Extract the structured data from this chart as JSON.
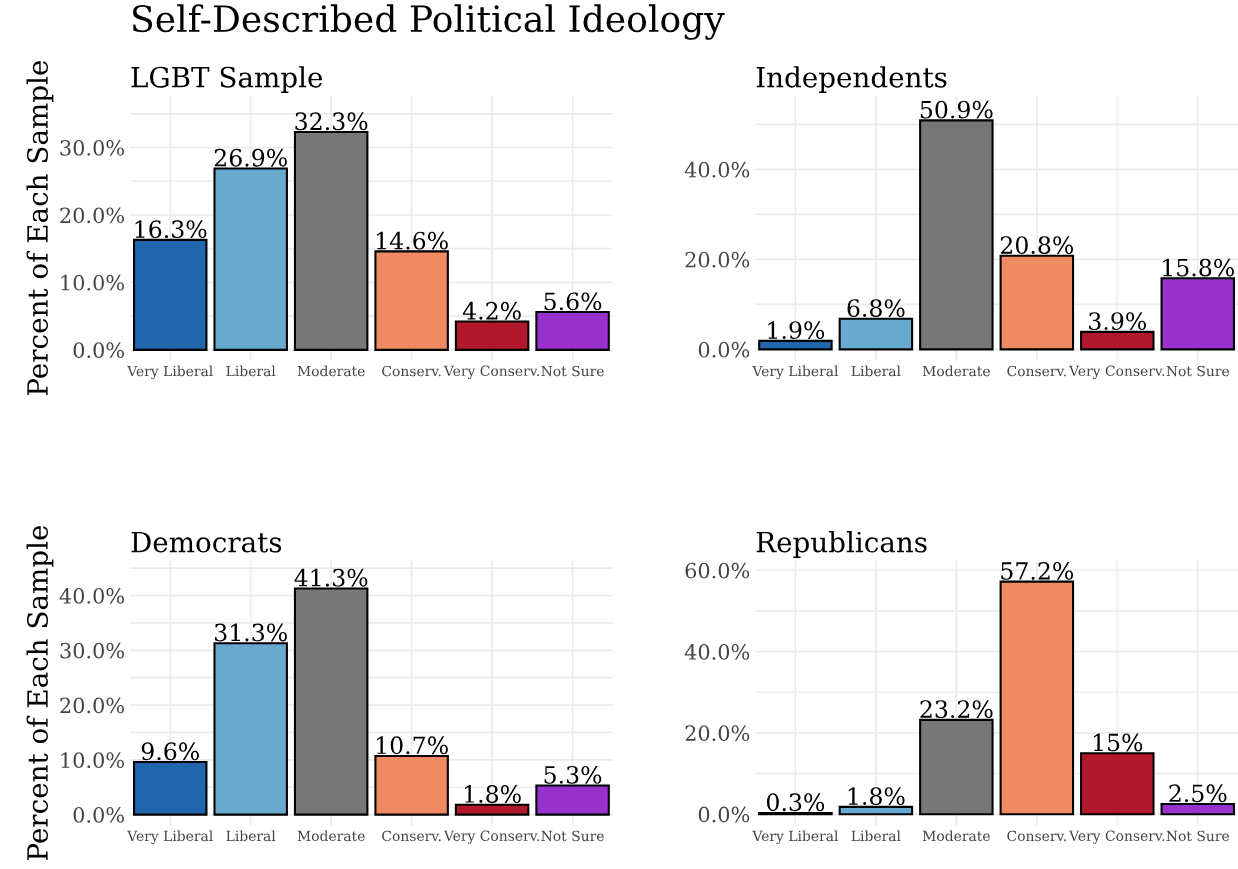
{
  "chart_data": [
    {
      "type": "bar",
      "title": "Self-Described Political Ideology",
      "subtitle": "LGBT Sample",
      "ylabel": "Percent of Each Sample",
      "categories": [
        "Very Liberal",
        "Liberal",
        "Moderate",
        "Conserv.",
        "Very Conserv.",
        "Not Sure"
      ],
      "values": [
        16.3,
        26.9,
        32.3,
        14.6,
        4.2,
        5.6
      ],
      "value_labels": [
        "16.3%",
        "26.9%",
        "32.3%",
        "14.6%",
        "4.2%",
        "5.6%"
      ],
      "colors": [
        "#2166ac",
        "#67a9cf",
        "#777777",
        "#ef8a62",
        "#b2182b",
        "#9932cc"
      ],
      "ylim": [
        -1.6,
        37.7
      ],
      "yticks": [
        {
          "value": 0,
          "label": "0.0%"
        },
        {
          "value": 5,
          "label": null
        },
        {
          "value": 10,
          "label": "10.0%"
        },
        {
          "value": 15,
          "label": null
        },
        {
          "value": 20,
          "label": "20.0%"
        },
        {
          "value": 25,
          "label": null
        },
        {
          "value": 30,
          "label": "30.0%"
        },
        {
          "value": 35,
          "label": null
        }
      ],
      "grid": true
    },
    {
      "type": "bar",
      "title": "Independents",
      "categories": [
        "Very Liberal",
        "Liberal",
        "Moderate",
        "Conserv.",
        "Very Conserv.",
        "Not Sure"
      ],
      "values": [
        1.9,
        6.8,
        50.9,
        20.8,
        3.9,
        15.8
      ],
      "value_labels": [
        "1.9%",
        "6.8%",
        "50.9%",
        "20.8%",
        "3.9%",
        "15.8%"
      ],
      "colors": [
        "#2166ac",
        "#67a9cf",
        "#777777",
        "#ef8a62",
        "#b2182b",
        "#9932cc"
      ],
      "ylim": [
        -2.5,
        56.4
      ],
      "yticks": [
        {
          "value": 0,
          "label": "0.0%"
        },
        {
          "value": 10,
          "label": null
        },
        {
          "value": 20,
          "label": "20.0%"
        },
        {
          "value": 30,
          "label": null
        },
        {
          "value": 40,
          "label": "40.0%"
        },
        {
          "value": 50,
          "label": null
        }
      ],
      "grid": true
    },
    {
      "type": "bar",
      "title": "Democrats",
      "ylabel": "Percent of Each Sample",
      "categories": [
        "Very Liberal",
        "Liberal",
        "Moderate",
        "Conserv.",
        "Very Conserv.",
        "Not Sure"
      ],
      "values": [
        9.6,
        31.3,
        41.3,
        10.7,
        1.8,
        5.3
      ],
      "value_labels": [
        "9.6%",
        "31.3%",
        "41.3%",
        "10.7%",
        "1.8%",
        "5.3%"
      ],
      "colors": [
        "#2166ac",
        "#67a9cf",
        "#777777",
        "#ef8a62",
        "#b2182b",
        "#9932cc"
      ],
      "ylim": [
        -2.0,
        46.4
      ],
      "yticks": [
        {
          "value": 0,
          "label": "0.0%"
        },
        {
          "value": 5,
          "label": null
        },
        {
          "value": 10,
          "label": "10.0%"
        },
        {
          "value": 15,
          "label": null
        },
        {
          "value": 20,
          "label": "20.0%"
        },
        {
          "value": 25,
          "label": null
        },
        {
          "value": 30,
          "label": "30.0%"
        },
        {
          "value": 35,
          "label": null
        },
        {
          "value": 40,
          "label": "40.0%"
        },
        {
          "value": 45,
          "label": null
        }
      ],
      "grid": true
    },
    {
      "type": "bar",
      "title": "Republicans",
      "categories": [
        "Very Liberal",
        "Liberal",
        "Moderate",
        "Conserv.",
        "Very Conserv.",
        "Not Sure"
      ],
      "values": [
        0.3,
        1.8,
        23.2,
        57.2,
        15,
        2.5
      ],
      "value_labels": [
        "0.3%",
        "1.8%",
        "23.2%",
        "57.2%",
        "15%",
        "2.5%"
      ],
      "colors": [
        "#2166ac",
        "#67a9cf",
        "#777777",
        "#ef8a62",
        "#b2182b",
        "#9932cc"
      ],
      "ylim": [
        -2.8,
        62.4
      ],
      "yticks": [
        {
          "value": 0,
          "label": "0.0%"
        },
        {
          "value": 10,
          "label": null
        },
        {
          "value": 20,
          "label": "20.0%"
        },
        {
          "value": 30,
          "label": null
        },
        {
          "value": 40,
          "label": "40.0%"
        },
        {
          "value": 50,
          "label": null
        },
        {
          "value": 60,
          "label": "60.0%"
        }
      ],
      "grid": true
    }
  ]
}
